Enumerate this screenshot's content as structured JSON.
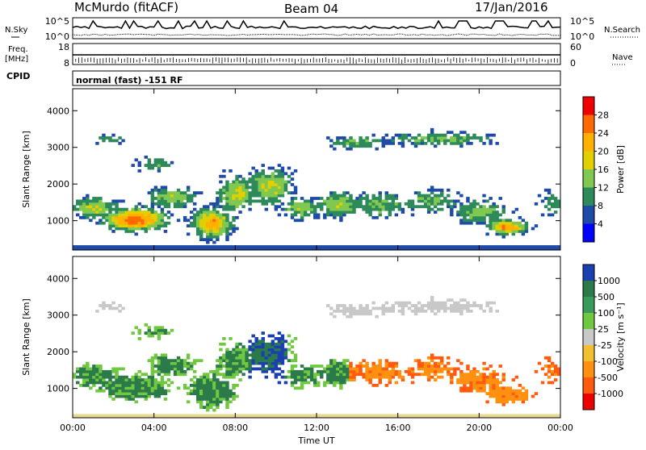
{
  "header": {
    "station": "McMurdo (fitACF)",
    "beam": "Beam 04",
    "date": "17/Jan/2016"
  },
  "summary": {
    "nsky_label": "N.Sky",
    "nsearch_label": "N.Search",
    "nsky_ticks": [
      "10^5",
      "10^0"
    ],
    "nsearch_ticks": [
      "10^5",
      "10^0"
    ],
    "freq_label_line1": "Freq.",
    "freq_label_line2": "[MHz]",
    "freq_ticks": [
      "18",
      "8"
    ],
    "nave_label": "Nave",
    "nave_ticks": [
      "60",
      "0"
    ],
    "cpid_label": "CPID",
    "mode_text": "normal (fast) -151 RF"
  },
  "chart_data": [
    {
      "type": "heatmap",
      "name": "power",
      "ylabel": "Slant Range [km]",
      "xlabel": "",
      "yticks": [
        1000,
        2000,
        3000,
        4000
      ],
      "ylim": [
        200,
        4600
      ],
      "xticks": [
        "00:00",
        "04:00",
        "08:00",
        "12:00",
        "16:00",
        "20:00",
        "00:00"
      ],
      "xlim_hours": [
        0,
        24
      ],
      "colorbar": {
        "label": "Power [dB]",
        "ticks": [
          "28",
          "24",
          "20",
          "16",
          "12",
          "8",
          "4"
        ],
        "colors": [
          "#f00000",
          "#ff6a00",
          "#ffb000",
          "#e0d000",
          "#80c850",
          "#2d8a5a",
          "#1e4aa8",
          "#0000ff"
        ]
      }
    },
    {
      "type": "heatmap",
      "name": "velocity",
      "ylabel": "Slant Range [km]",
      "xlabel": "Time UT",
      "yticks": [
        1000,
        2000,
        3000,
        4000
      ],
      "ylim": [
        200,
        4600
      ],
      "xticks": [
        "00:00",
        "04:00",
        "08:00",
        "12:00",
        "16:00",
        "20:00",
        "00:00"
      ],
      "xlim_hours": [
        0,
        24
      ],
      "colorbar": {
        "label": "Velocity [m s⁻¹]",
        "ticks": [
          "1000",
          "500",
          "100",
          "25",
          "-25",
          "-100",
          "-500",
          "-1000"
        ],
        "colors": [
          "#1a3fb0",
          "#2b7a4a",
          "#3a9a5a",
          "#70c840",
          "#c8c8c8",
          "#f0c030",
          "#ff9010",
          "#ff5a10",
          "#ee0000"
        ]
      }
    }
  ]
}
